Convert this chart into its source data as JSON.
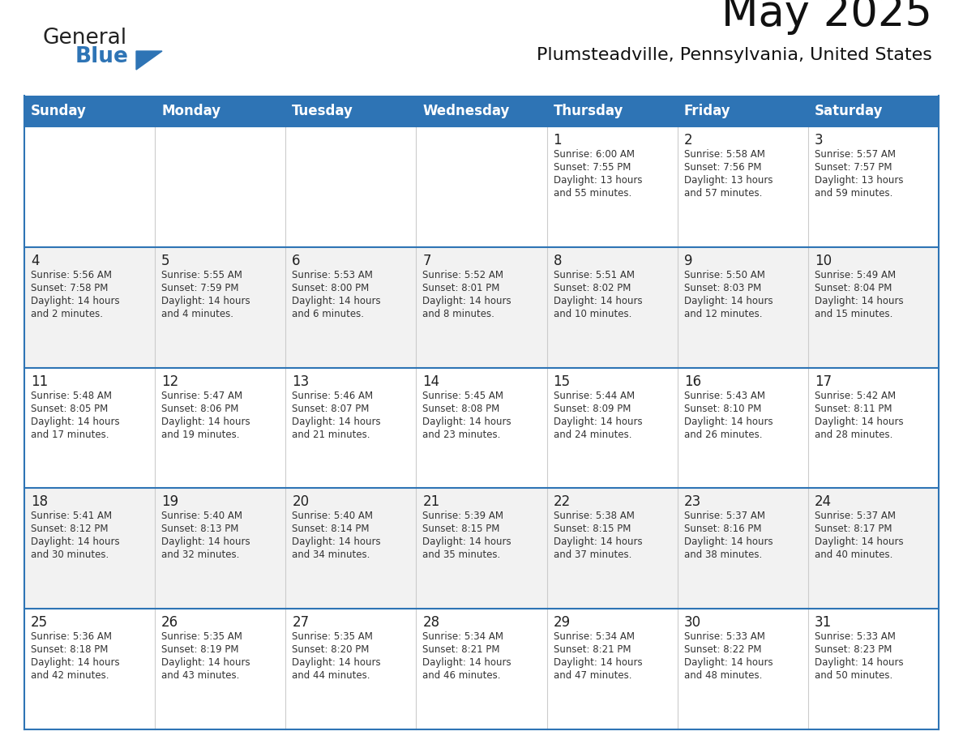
{
  "title": "May 2025",
  "subtitle": "Plumsteadville, Pennsylvania, United States",
  "header_color": "#2E74B5",
  "header_text_color": "#FFFFFF",
  "days_of_week": [
    "Sunday",
    "Monday",
    "Tuesday",
    "Wednesday",
    "Thursday",
    "Friday",
    "Saturday"
  ],
  "bg_color": "#FFFFFF",
  "border_color": "#2E74B5",
  "text_color": "#333333",
  "logo_general_color": "#222222",
  "logo_blue_color": "#2E74B5",
  "weeks": [
    [
      {
        "day": "",
        "sunrise": "",
        "sunset": "",
        "daylight": ""
      },
      {
        "day": "",
        "sunrise": "",
        "sunset": "",
        "daylight": ""
      },
      {
        "day": "",
        "sunrise": "",
        "sunset": "",
        "daylight": ""
      },
      {
        "day": "",
        "sunrise": "",
        "sunset": "",
        "daylight": ""
      },
      {
        "day": "1",
        "sunrise": "Sunrise: 6:00 AM",
        "sunset": "Sunset: 7:55 PM",
        "daylight": "Daylight: 13 hours and 55 minutes."
      },
      {
        "day": "2",
        "sunrise": "Sunrise: 5:58 AM",
        "sunset": "Sunset: 7:56 PM",
        "daylight": "Daylight: 13 hours and 57 minutes."
      },
      {
        "day": "3",
        "sunrise": "Sunrise: 5:57 AM",
        "sunset": "Sunset: 7:57 PM",
        "daylight": "Daylight: 13 hours and 59 minutes."
      }
    ],
    [
      {
        "day": "4",
        "sunrise": "Sunrise: 5:56 AM",
        "sunset": "Sunset: 7:58 PM",
        "daylight": "Daylight: 14 hours and 2 minutes."
      },
      {
        "day": "5",
        "sunrise": "Sunrise: 5:55 AM",
        "sunset": "Sunset: 7:59 PM",
        "daylight": "Daylight: 14 hours and 4 minutes."
      },
      {
        "day": "6",
        "sunrise": "Sunrise: 5:53 AM",
        "sunset": "Sunset: 8:00 PM",
        "daylight": "Daylight: 14 hours and 6 minutes."
      },
      {
        "day": "7",
        "sunrise": "Sunrise: 5:52 AM",
        "sunset": "Sunset: 8:01 PM",
        "daylight": "Daylight: 14 hours and 8 minutes."
      },
      {
        "day": "8",
        "sunrise": "Sunrise: 5:51 AM",
        "sunset": "Sunset: 8:02 PM",
        "daylight": "Daylight: 14 hours and 10 minutes."
      },
      {
        "day": "9",
        "sunrise": "Sunrise: 5:50 AM",
        "sunset": "Sunset: 8:03 PM",
        "daylight": "Daylight: 14 hours and 12 minutes."
      },
      {
        "day": "10",
        "sunrise": "Sunrise: 5:49 AM",
        "sunset": "Sunset: 8:04 PM",
        "daylight": "Daylight: 14 hours and 15 minutes."
      }
    ],
    [
      {
        "day": "11",
        "sunrise": "Sunrise: 5:48 AM",
        "sunset": "Sunset: 8:05 PM",
        "daylight": "Daylight: 14 hours and 17 minutes."
      },
      {
        "day": "12",
        "sunrise": "Sunrise: 5:47 AM",
        "sunset": "Sunset: 8:06 PM",
        "daylight": "Daylight: 14 hours and 19 minutes."
      },
      {
        "day": "13",
        "sunrise": "Sunrise: 5:46 AM",
        "sunset": "Sunset: 8:07 PM",
        "daylight": "Daylight: 14 hours and 21 minutes."
      },
      {
        "day": "14",
        "sunrise": "Sunrise: 5:45 AM",
        "sunset": "Sunset: 8:08 PM",
        "daylight": "Daylight: 14 hours and 23 minutes."
      },
      {
        "day": "15",
        "sunrise": "Sunrise: 5:44 AM",
        "sunset": "Sunset: 8:09 PM",
        "daylight": "Daylight: 14 hours and 24 minutes."
      },
      {
        "day": "16",
        "sunrise": "Sunrise: 5:43 AM",
        "sunset": "Sunset: 8:10 PM",
        "daylight": "Daylight: 14 hours and 26 minutes."
      },
      {
        "day": "17",
        "sunrise": "Sunrise: 5:42 AM",
        "sunset": "Sunset: 8:11 PM",
        "daylight": "Daylight: 14 hours and 28 minutes."
      }
    ],
    [
      {
        "day": "18",
        "sunrise": "Sunrise: 5:41 AM",
        "sunset": "Sunset: 8:12 PM",
        "daylight": "Daylight: 14 hours and 30 minutes."
      },
      {
        "day": "19",
        "sunrise": "Sunrise: 5:40 AM",
        "sunset": "Sunset: 8:13 PM",
        "daylight": "Daylight: 14 hours and 32 minutes."
      },
      {
        "day": "20",
        "sunrise": "Sunrise: 5:40 AM",
        "sunset": "Sunset: 8:14 PM",
        "daylight": "Daylight: 14 hours and 34 minutes."
      },
      {
        "day": "21",
        "sunrise": "Sunrise: 5:39 AM",
        "sunset": "Sunset: 8:15 PM",
        "daylight": "Daylight: 14 hours and 35 minutes."
      },
      {
        "day": "22",
        "sunrise": "Sunrise: 5:38 AM",
        "sunset": "Sunset: 8:15 PM",
        "daylight": "Daylight: 14 hours and 37 minutes."
      },
      {
        "day": "23",
        "sunrise": "Sunrise: 5:37 AM",
        "sunset": "Sunset: 8:16 PM",
        "daylight": "Daylight: 14 hours and 38 minutes."
      },
      {
        "day": "24",
        "sunrise": "Sunrise: 5:37 AM",
        "sunset": "Sunset: 8:17 PM",
        "daylight": "Daylight: 14 hours and 40 minutes."
      }
    ],
    [
      {
        "day": "25",
        "sunrise": "Sunrise: 5:36 AM",
        "sunset": "Sunset: 8:18 PM",
        "daylight": "Daylight: 14 hours and 42 minutes."
      },
      {
        "day": "26",
        "sunrise": "Sunrise: 5:35 AM",
        "sunset": "Sunset: 8:19 PM",
        "daylight": "Daylight: 14 hours and 43 minutes."
      },
      {
        "day": "27",
        "sunrise": "Sunrise: 5:35 AM",
        "sunset": "Sunset: 8:20 PM",
        "daylight": "Daylight: 14 hours and 44 minutes."
      },
      {
        "day": "28",
        "sunrise": "Sunrise: 5:34 AM",
        "sunset": "Sunset: 8:21 PM",
        "daylight": "Daylight: 14 hours and 46 minutes."
      },
      {
        "day": "29",
        "sunrise": "Sunrise: 5:34 AM",
        "sunset": "Sunset: 8:21 PM",
        "daylight": "Daylight: 14 hours and 47 minutes."
      },
      {
        "day": "30",
        "sunrise": "Sunrise: 5:33 AM",
        "sunset": "Sunset: 8:22 PM",
        "daylight": "Daylight: 14 hours and 48 minutes."
      },
      {
        "day": "31",
        "sunrise": "Sunrise: 5:33 AM",
        "sunset": "Sunset: 8:23 PM",
        "daylight": "Daylight: 14 hours and 50 minutes."
      }
    ]
  ]
}
